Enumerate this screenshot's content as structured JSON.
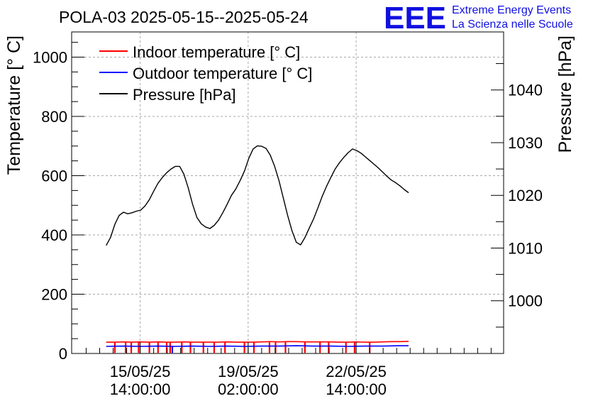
{
  "chart_data": {
    "type": "line",
    "title": "POLA-03 2025-05-15--2025-05-24",
    "ylabel": "Temperature [° C]",
    "y2label": "Pressure [hPa]",
    "ylim": [
      0,
      1085
    ],
    "y2lim": [
      990.0,
      1051.0
    ],
    "yticks": [
      0,
      200,
      400,
      600,
      800,
      1000
    ],
    "y2ticks": [
      1000,
      1010,
      1020,
      1030,
      1040
    ],
    "xlim": [
      0,
      10
    ],
    "xticks": [
      {
        "x": 1.586,
        "label": [
          "15/05/25",
          "14:00:00"
        ]
      },
      {
        "x": 4.086,
        "label": [
          "19/05/25",
          "02:00:00"
        ]
      },
      {
        "x": 6.586,
        "label": [
          "22/05/25",
          "14:00:00"
        ]
      }
    ],
    "grid": true,
    "legend_position": "top-left",
    "series": [
      {
        "name": "Indoor temperature [° C]",
        "color": "#ff0000",
        "axis": "left",
        "x": [
          0.8,
          1.0,
          1.2,
          1.4,
          1.6,
          1.8,
          2.0,
          2.2,
          2.4,
          2.6,
          2.8,
          3.0,
          3.2,
          3.4,
          3.6,
          3.8,
          4.0,
          4.2,
          4.4,
          4.6,
          4.8,
          5.0,
          5.2,
          5.4,
          5.6,
          5.8,
          6.0,
          6.2,
          6.4,
          6.6,
          6.8,
          7.0,
          7.2,
          7.4,
          7.6,
          7.8
        ],
        "y": [
          38,
          38,
          39,
          38,
          39,
          38,
          39,
          38,
          38,
          39,
          38,
          38,
          38,
          38,
          39,
          38,
          38,
          38,
          39,
          40,
          39,
          40,
          40,
          39,
          39,
          39,
          39,
          38,
          38,
          39,
          38,
          38,
          39,
          40,
          40,
          41
        ],
        "drops": [
          {
            "x": 1.0,
            "y": 2
          },
          {
            "x": 1.25,
            "y": 2
          },
          {
            "x": 1.38,
            "y": 2
          },
          {
            "x": 1.55,
            "y": 2
          },
          {
            "x": 1.8,
            "y": 2
          },
          {
            "x": 2.0,
            "y": 2
          },
          {
            "x": 2.2,
            "y": 2
          },
          {
            "x": 2.28,
            "y": 2
          },
          {
            "x": 2.55,
            "y": 2
          },
          {
            "x": 2.75,
            "y": 2
          },
          {
            "x": 3.05,
            "y": 2
          },
          {
            "x": 3.3,
            "y": 2
          },
          {
            "x": 3.55,
            "y": 2
          },
          {
            "x": 4.0,
            "y": 2
          },
          {
            "x": 4.22,
            "y": 2
          },
          {
            "x": 4.58,
            "y": 2
          },
          {
            "x": 4.72,
            "y": 2
          },
          {
            "x": 4.95,
            "y": 2
          },
          {
            "x": 5.4,
            "y": 2
          },
          {
            "x": 5.75,
            "y": 2
          },
          {
            "x": 5.95,
            "y": 2
          },
          {
            "x": 6.35,
            "y": 2
          },
          {
            "x": 6.55,
            "y": 2
          },
          {
            "x": 6.9,
            "y": 2
          }
        ]
      },
      {
        "name": "Outdoor temperature [° C]",
        "color": "#0000ff",
        "axis": "left",
        "x": [
          0.8,
          1.2,
          1.6,
          2.0,
          2.4,
          2.8,
          3.2,
          3.6,
          4.0,
          4.4,
          4.8,
          5.2,
          5.6,
          6.0,
          6.4,
          6.8,
          7.2,
          7.6,
          7.8
        ],
        "y": [
          24,
          25,
          24,
          25,
          24,
          25,
          24,
          25,
          24,
          25,
          25,
          26,
          25,
          25,
          24,
          25,
          25,
          26,
          26
        ],
        "drops": [
          {
            "x": 2.33,
            "y": 2
          }
        ]
      },
      {
        "name": "Pressure [hPa]",
        "color": "#000000",
        "axis": "right",
        "x": [
          0.8,
          0.9,
          1.0,
          1.1,
          1.2,
          1.3,
          1.4,
          1.5,
          1.6,
          1.7,
          1.8,
          1.9,
          2.0,
          2.1,
          2.2,
          2.3,
          2.4,
          2.5,
          2.6,
          2.7,
          2.8,
          2.9,
          3.0,
          3.1,
          3.2,
          3.3,
          3.4,
          3.5,
          3.6,
          3.7,
          3.8,
          3.9,
          4.0,
          4.1,
          4.2,
          4.3,
          4.4,
          4.5,
          4.6,
          4.7,
          4.8,
          4.9,
          5.0,
          5.1,
          5.2,
          5.3,
          5.4,
          5.5,
          5.6,
          5.7,
          5.8,
          5.9,
          6.0,
          6.1,
          6.2,
          6.3,
          6.4,
          6.5,
          6.6,
          6.7,
          6.8,
          6.9,
          7.0,
          7.1,
          7.2,
          7.3,
          7.4,
          7.5,
          7.6,
          7.7,
          7.8
        ],
        "y": [
          1010.5,
          1012.0,
          1014.5,
          1016.2,
          1016.8,
          1016.5,
          1016.7,
          1017.0,
          1017.2,
          1018.0,
          1019.2,
          1020.8,
          1022.3,
          1023.4,
          1024.3,
          1025.0,
          1025.5,
          1025.5,
          1024.0,
          1021.4,
          1018.3,
          1015.8,
          1014.6,
          1014.0,
          1013.7,
          1014.3,
          1015.3,
          1016.7,
          1018.3,
          1020.0,
          1021.2,
          1022.8,
          1024.6,
          1027.0,
          1028.8,
          1029.4,
          1029.3,
          1028.9,
          1027.6,
          1025.5,
          1022.8,
          1019.5,
          1016.2,
          1013.3,
          1011.1,
          1010.6,
          1012.0,
          1013.8,
          1015.5,
          1017.6,
          1019.8,
          1021.7,
          1023.4,
          1025.0,
          1026.2,
          1027.2,
          1028.1,
          1028.8,
          1028.5,
          1028.0,
          1027.3,
          1026.6,
          1025.9,
          1025.2,
          1024.4,
          1023.6,
          1022.9,
          1022.4,
          1021.8,
          1021.1,
          1020.5
        ]
      }
    ]
  },
  "logo": {
    "letters": "EEE",
    "line1": "Extreme Energy Events",
    "line2": "La Scienza nelle Scuole"
  }
}
